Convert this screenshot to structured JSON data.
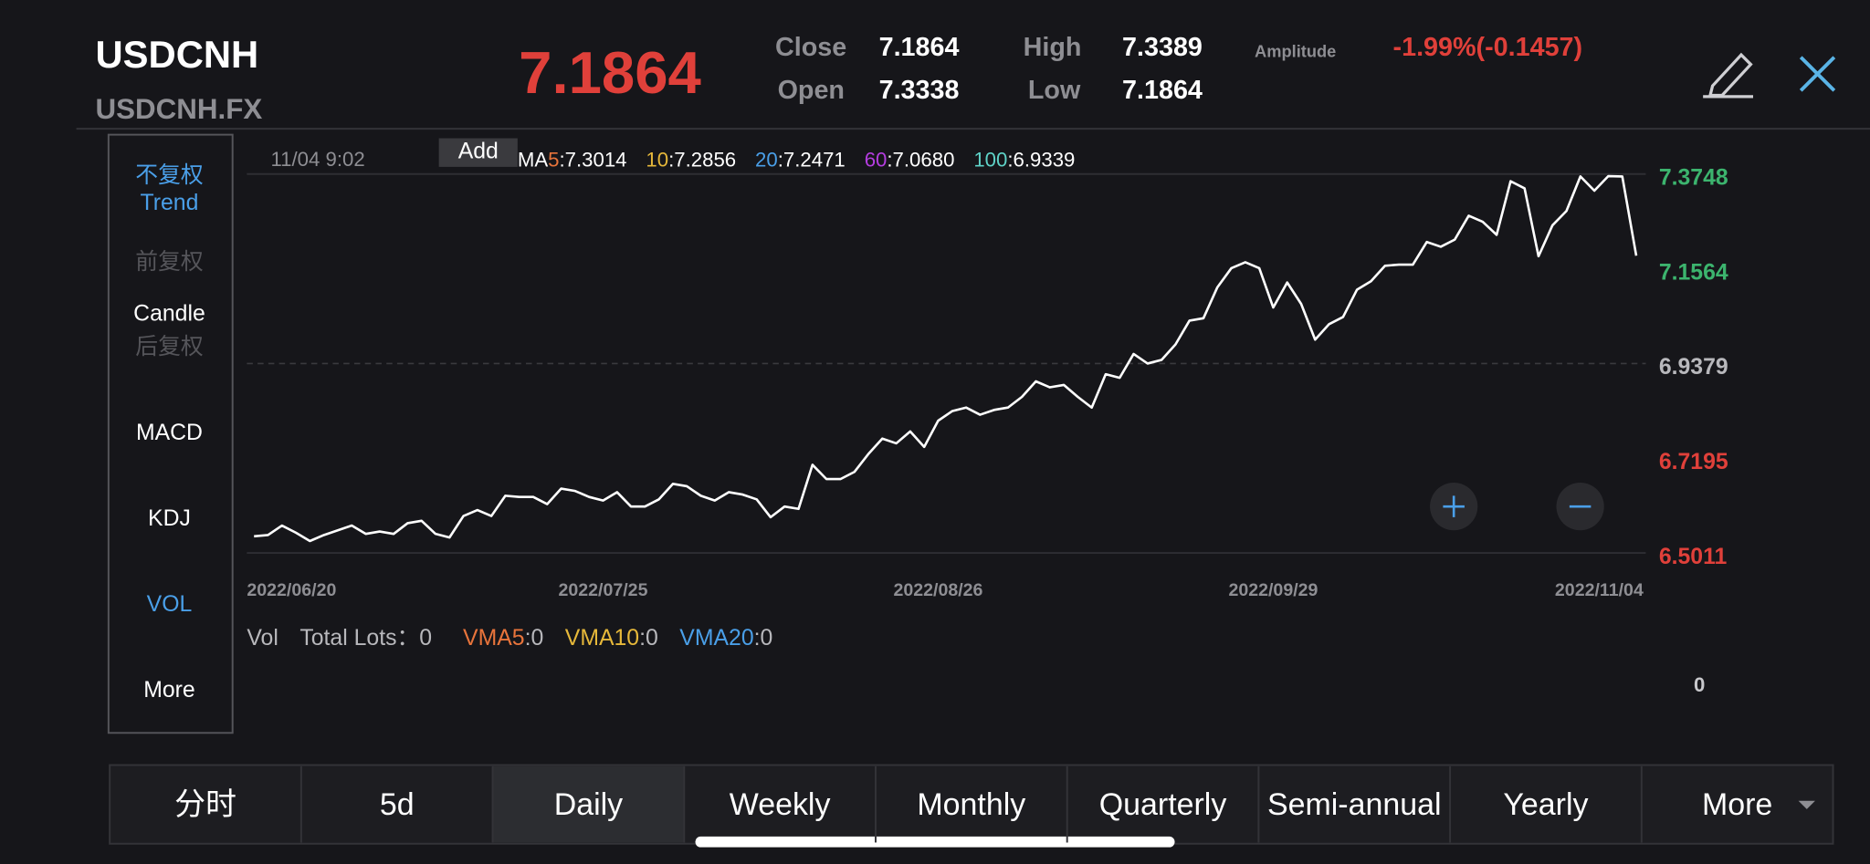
{
  "header": {
    "symbol": "USDCNH",
    "code": "USDCNH.FX",
    "price": "7.1864",
    "stats": {
      "close_label": "Close",
      "close": "7.1864",
      "open_label": "Open",
      "open": "7.3338",
      "high_label": "High",
      "high": "7.3389",
      "low_label": "Low",
      "low": "7.1864",
      "amplitude_label": "Amplitude",
      "amplitude": "-1.99%(-0.1457)"
    }
  },
  "sidebar": {
    "items": [
      "不复权",
      "Trend",
      "前复权",
      "Candle",
      "后复权",
      "MACD",
      "KDJ",
      "VOL",
      "More"
    ],
    "colors": [
      "#4a9fe8",
      "#4a9fe8",
      "#55555a",
      "#ffffff",
      "#55555a",
      "#ffffff",
      "#ffffff",
      "#4a9fe8",
      "#ffffff"
    ]
  },
  "chart_info": {
    "time": "11/04 9:02",
    "add_button": "Add",
    "separator": ":",
    "ma_prefix": "MA",
    "ma": [
      {
        "name": "5",
        "value": "7.3014",
        "color": "#e8743b"
      },
      {
        "name": "10",
        "value": "7.2856",
        "color": "#e6b83a"
      },
      {
        "name": "20",
        "value": "7.2471",
        "color": "#4a9fe8"
      },
      {
        "name": "60",
        "value": "7.0680",
        "color": "#b43de0"
      },
      {
        "name": "100",
        "value": "6.9339",
        "color": "#5fd3c8"
      }
    ]
  },
  "chart_data": {
    "type": "line",
    "color": "#ffffff",
    "categories": [
      "2022/06/20",
      null,
      null,
      null,
      null,
      null,
      null,
      null,
      null,
      null,
      null,
      null,
      null,
      null,
      null,
      null,
      null,
      null,
      null,
      null,
      null,
      null,
      null,
      null,
      null,
      "2022/07/25",
      null,
      null,
      null,
      null,
      null,
      null,
      null,
      null,
      null,
      null,
      null,
      null,
      null,
      null,
      null,
      null,
      null,
      null,
      null,
      null,
      null,
      null,
      null,
      "2022/08/26",
      null,
      null,
      null,
      null,
      null,
      null,
      null,
      null,
      null,
      null,
      null,
      null,
      null,
      null,
      null,
      null,
      null,
      null,
      null,
      null,
      null,
      null,
      null,
      "2022/09/29",
      null,
      null,
      null,
      null,
      null,
      null,
      null,
      null,
      null,
      null,
      null,
      null,
      null,
      null,
      null,
      null,
      null,
      null,
      null,
      null,
      null,
      null,
      null,
      null,
      null,
      "2022/11/04"
    ],
    "values": [
      6.5396,
      6.5423,
      6.5643,
      6.5478,
      6.5286,
      6.5423,
      6.5533,
      6.5643,
      6.5451,
      6.5506,
      6.5451,
      6.5698,
      6.5753,
      6.5451,
      6.5368,
      6.5863,
      6.6,
      6.5863,
      6.633,
      6.6302,
      6.6302,
      6.6137,
      6.6495,
      6.644,
      6.6302,
      6.622,
      6.6412,
      6.6082,
      6.6082,
      6.6247,
      6.6604,
      6.6549,
      6.633,
      6.622,
      6.6412,
      6.6357,
      6.6247,
      6.5835,
      6.6082,
      6.6027,
      6.7044,
      6.6714,
      6.6714,
      6.6879,
      6.7291,
      6.7648,
      6.7538,
      6.7813,
      6.7456,
      6.806,
      6.828,
      6.8363,
      6.8198,
      6.8308,
      6.8363,
      6.861,
      6.8967,
      6.883,
      6.8885,
      6.861,
      6.8363,
      6.9132,
      6.9049,
      6.9599,
      6.9379,
      6.9462,
      6.9819,
      7.0368,
      7.0423,
      7.1137,
      7.1577,
      7.1714,
      7.1577,
      7.067,
      7.1247,
      7.0753,
      6.9929,
      7.0286,
      7.0451,
      7.1082,
      7.1275,
      7.1632,
      7.1659,
      7.1659,
      7.2181,
      7.2071,
      7.2236,
      7.2786,
      7.2648,
      7.2346,
      7.3582,
      7.3418,
      7.1852,
      7.2566,
      7.2896,
      7.3692,
      7.3363,
      7.37,
      7.3692,
      7.1864
    ],
    "ylim": [
      6.5011,
      7.3748
    ],
    "yticks": [
      6.5011,
      6.7195,
      6.9379,
      7.1564,
      7.3748
    ],
    "ytick_colors": [
      "#e0403a",
      "#e0403a",
      "#b8b8bc",
      "#3cb46e",
      "#3cb46e"
    ]
  },
  "volume": {
    "title": "Vol",
    "total": "Total Lots：0",
    "axis_label": "0",
    "items": [
      {
        "name": "VMA5",
        "value": "0",
        "color": "#e8743b"
      },
      {
        "name": "VMA10",
        "value": "0",
        "color": "#e6b83a"
      },
      {
        "name": "VMA20",
        "value": "0",
        "color": "#4a9fe8"
      }
    ]
  },
  "tabs": {
    "items": [
      "分时",
      "5d",
      "Daily",
      "Weekly",
      "Monthly",
      "Quarterly",
      "Semi-annual",
      "Yearly",
      "More"
    ],
    "active": 2
  }
}
